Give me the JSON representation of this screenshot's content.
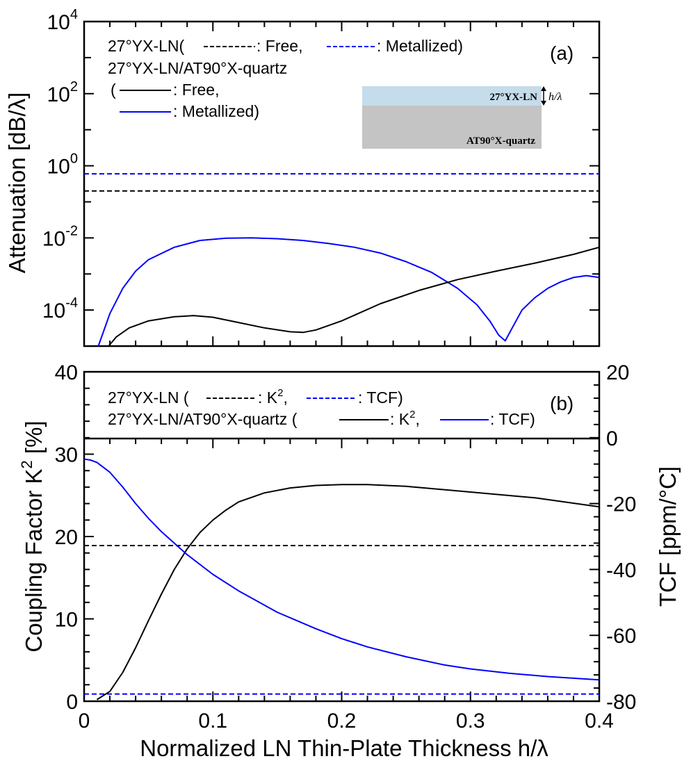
{
  "chart_data": [
    {
      "id": "a",
      "type": "line",
      "panel_label": "(a)",
      "ylabel": "Attenuation  [dB/λ]",
      "xlim": [
        0,
        0.4
      ],
      "ylim": [
        1e-05,
        10000
      ],
      "yscale": "log",
      "yticks": [
        {
          "value": 10000,
          "base": "10",
          "exp": "4"
        },
        {
          "value": 100,
          "base": "10",
          "exp": "2"
        },
        {
          "value": 1,
          "base": "10",
          "exp": "0"
        },
        {
          "value": 0.01,
          "base": "10",
          "exp": "-2"
        },
        {
          "value": 0.0001,
          "base": "10",
          "exp": "-4"
        }
      ],
      "legend": {
        "line1_pre": "27°YX-LN(",
        "line1_free": ": Free,",
        "line1_met": ": Metallized)",
        "line2": "27°YX-LN/AT90°X-quartz",
        "line3_pre": "(",
        "line3_free": ": Free,",
        "line4_met": ": Metallized)"
      },
      "inset": {
        "top_label": "27°YX-LN",
        "bottom_label": "AT90°X-quartz",
        "thickness_label": "h/λ",
        "top_color": "#c5dcea",
        "bottom_color": "#c4c4c4"
      },
      "series": [
        {
          "style": "dashed",
          "color": "#0000ff",
          "x": [
            0,
            0.4
          ],
          "y": [
            0.6,
            0.6
          ]
        },
        {
          "style": "dashed",
          "color": "#000000",
          "x": [
            0,
            0.4
          ],
          "y": [
            0.2,
            0.2
          ]
        },
        {
          "style": "solid",
          "color": "#0000ff",
          "x": [
            0.011,
            0.015,
            0.02,
            0.03,
            0.04,
            0.05,
            0.07,
            0.09,
            0.11,
            0.13,
            0.15,
            0.17,
            0.19,
            0.21,
            0.23,
            0.25,
            0.27,
            0.29,
            0.305,
            0.315,
            0.322,
            0.327,
            0.333,
            0.34,
            0.35,
            0.36,
            0.37,
            0.38,
            0.39,
            0.4
          ],
          "y": [
            1e-05,
            2.5e-05,
            8e-05,
            0.0004,
            0.0012,
            0.0025,
            0.0055,
            0.0085,
            0.0098,
            0.01,
            0.0095,
            0.0085,
            0.007,
            0.0055,
            0.0038,
            0.0022,
            0.0011,
            0.0004,
            0.00014,
            5e-05,
            2e-05,
            1.4e-05,
            3.5e-05,
            0.0001,
            0.00022,
            0.0004,
            0.0006,
            0.0008,
            0.0009,
            0.0008
          ]
        },
        {
          "style": "solid",
          "color": "#000000",
          "x": [
            0.019,
            0.025,
            0.035,
            0.05,
            0.07,
            0.085,
            0.1,
            0.12,
            0.14,
            0.16,
            0.17,
            0.18,
            0.2,
            0.23,
            0.26,
            0.29,
            0.32,
            0.35,
            0.38,
            0.4
          ],
          "y": [
            1e-05,
            1.8e-05,
            3.2e-05,
            5e-05,
            6.5e-05,
            7e-05,
            6.3e-05,
            4.5e-05,
            3.2e-05,
            2.5e-05,
            2.4e-05,
            2.8e-05,
            5e-05,
            0.00015,
            0.00035,
            0.0007,
            0.0012,
            0.002,
            0.0035,
            0.0055
          ]
        }
      ]
    },
    {
      "id": "b",
      "type": "line",
      "panel_label": "(b)",
      "xlabel": "Normalized  LN  Thin-Plate  Thickness  h/λ",
      "ylabel_left": "Coupling  Factor  K",
      "ylabel_left_sup": "2",
      "ylabel_left_unit": "[%]",
      "ylabel_right": "TCF  [ppm/°C]",
      "xlim": [
        0,
        0.4
      ],
      "ylim_left": [
        0,
        40
      ],
      "ylim_right": [
        -80,
        20
      ],
      "xticks": [
        "0",
        "0.1",
        "0.2",
        "0.3",
        "0.4"
      ],
      "yticks_left": [
        "0",
        "10",
        "20",
        "30",
        "40"
      ],
      "yticks_right": [
        "-80",
        "-60",
        "-40",
        "-20",
        "0",
        "20"
      ],
      "legend": {
        "line1_pre": "27°YX-LN (",
        "line1_k2": ": K",
        "line1_k2_sup": "2",
        "line1_k2_post": ",",
        "line1_tcf": ": TCF)",
        "line2_pre": "27°YX-LN/AT90°X-quartz (",
        "line2_k2": ": K",
        "line2_k2_sup": "2",
        "line2_k2_post": ",",
        "line2_tcf": ": TCF)"
      },
      "series": [
        {
          "axis": "left",
          "style": "dashed",
          "color": "#000000",
          "x": [
            0,
            0.4
          ],
          "y": [
            18.9,
            18.9
          ]
        },
        {
          "axis": "right",
          "style": "dashed",
          "color": "#0000ff",
          "x": [
            0,
            0.4
          ],
          "y": [
            -77.8,
            -77.8
          ]
        },
        {
          "axis": "left",
          "style": "solid",
          "color": "#000000",
          "x": [
            0.01,
            0.02,
            0.03,
            0.04,
            0.05,
            0.06,
            0.07,
            0.08,
            0.09,
            0.1,
            0.11,
            0.12,
            0.14,
            0.16,
            0.18,
            0.2,
            0.22,
            0.25,
            0.3,
            0.35,
            0.4
          ],
          "y": [
            0.2,
            1.2,
            3.5,
            6.5,
            9.8,
            13,
            16,
            18.5,
            20.5,
            22,
            23.2,
            24.2,
            25.3,
            25.9,
            26.2,
            26.3,
            26.3,
            26.1,
            25.4,
            24.7,
            23.6
          ]
        },
        {
          "axis": "right",
          "style": "solid",
          "color": "#0000ff",
          "x": [
            0,
            0.005,
            0.01,
            0.02,
            0.03,
            0.04,
            0.05,
            0.06,
            0.08,
            0.1,
            0.12,
            0.15,
            0.18,
            0.2,
            0.22,
            0.25,
            0.28,
            0.3,
            0.33,
            0.36,
            0.4
          ],
          "y": [
            -6.5,
            -6.8,
            -7.5,
            -10.5,
            -15,
            -20,
            -24.5,
            -28.5,
            -35.5,
            -41.5,
            -46.5,
            -53,
            -58,
            -61,
            -63.5,
            -66.5,
            -69,
            -70.2,
            -71.5,
            -72.5,
            -73.5
          ]
        }
      ]
    }
  ]
}
